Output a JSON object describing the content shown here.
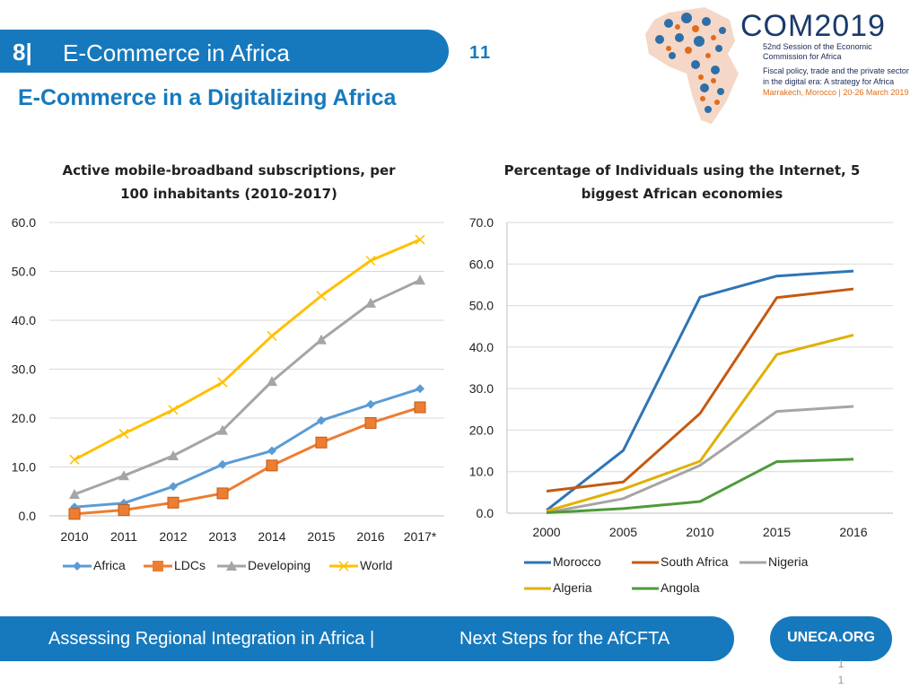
{
  "header": {
    "section_number": "8|",
    "title": "E-Commerce in Africa",
    "page_badge": "11"
  },
  "subtitle": "E-Commerce in a Digitalizing Africa",
  "logo": {
    "brand": "COM2019",
    "line1": "52nd Session of the Economic",
    "line2": "Commission for Africa",
    "line3": "Fiscal policy, trade and the private sector",
    "line4": "in the digital era: A strategy for Africa",
    "line5": "Marrakech, Morocco | 20-26 March 2019"
  },
  "chart_data": [
    {
      "type": "line",
      "title": "Active mobile-broadband subscriptions, per 100 inhabitants (2010-2017)",
      "title_lines": [
        "Active mobile-broadband subscriptions, per",
        "100 inhabitants (2010-2017)"
      ],
      "categories": [
        "2010",
        "2011",
        "2012",
        "2013",
        "2014",
        "2015",
        "2016",
        "2017*"
      ],
      "ylim": [
        0,
        60
      ],
      "yticks": [
        "0.0",
        "10.0",
        "20.0",
        "30.0",
        "40.0",
        "50.0",
        "60.0"
      ],
      "grid": true,
      "legend_position": "bottom",
      "series": [
        {
          "name": "Africa",
          "color": "#5b9bd5",
          "marker": "diamond",
          "values": [
            1.8,
            2.6,
            6.0,
            10.5,
            13.3,
            19.5,
            22.8,
            26.0
          ]
        },
        {
          "name": "LDCs",
          "color": "#ed7d31",
          "marker": "square",
          "values": [
            0.4,
            1.2,
            2.7,
            4.6,
            10.3,
            15.0,
            19.0,
            22.2
          ]
        },
        {
          "name": "Developing",
          "color": "#a5a5a5",
          "marker": "triangle",
          "values": [
            4.4,
            8.2,
            12.3,
            17.5,
            27.5,
            36.0,
            43.5,
            48.2
          ]
        },
        {
          "name": "World",
          "color": "#ffc000",
          "marker": "x",
          "values": [
            11.5,
            16.8,
            21.7,
            27.3,
            36.8,
            45.0,
            52.2,
            56.5
          ]
        }
      ]
    },
    {
      "type": "line",
      "title": "Percentage of Individuals using the Internet, 5 biggest African economies",
      "title_lines": [
        "Percentage of Individuals using the Internet, 5",
        "biggest African economies"
      ],
      "categories": [
        "2000",
        "2005",
        "2010",
        "2015",
        "2016"
      ],
      "ylim": [
        0,
        70
      ],
      "yticks": [
        "0.0",
        "10.0",
        "20.0",
        "30.0",
        "40.0",
        "50.0",
        "60.0",
        "70.0"
      ],
      "grid": true,
      "legend_position": "bottom",
      "series": [
        {
          "name": "Morocco",
          "color": "#2e75b6",
          "values": [
            0.7,
            15.1,
            52.0,
            57.1,
            58.3
          ]
        },
        {
          "name": "South Africa",
          "color": "#c55a11",
          "values": [
            5.3,
            7.5,
            24.0,
            51.9,
            54.0
          ]
        },
        {
          "name": "Nigeria",
          "color": "#a5a5a5",
          "values": [
            0.1,
            3.5,
            11.5,
            24.5,
            25.7
          ]
        },
        {
          "name": "Algeria",
          "color": "#e0b000",
          "values": [
            0.5,
            5.8,
            12.5,
            38.2,
            42.9
          ]
        },
        {
          "name": "Angola",
          "color": "#4e9a3b",
          "values": [
            0.1,
            1.1,
            2.8,
            12.4,
            13.0
          ]
        }
      ]
    }
  ],
  "footer": {
    "left": "Assessing Regional Integration in Africa |",
    "right": "Next Steps for the AfCFTA",
    "site": "UNECA.ORG",
    "slide_number_1": "1",
    "slide_number_2": "1"
  }
}
